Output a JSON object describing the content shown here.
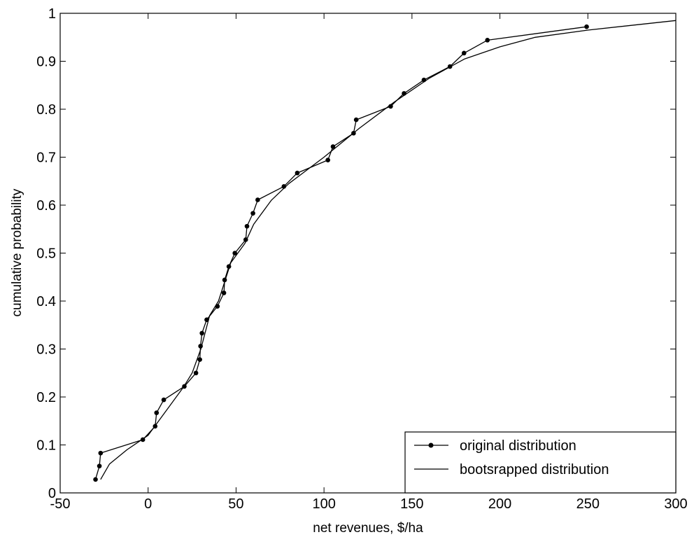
{
  "chart_data": {
    "type": "line",
    "title": "",
    "xlabel": "net revenues, $/ha",
    "ylabel": "cumulative probability",
    "xlim": [
      -50,
      300
    ],
    "ylim": [
      0,
      1
    ],
    "xticks": [
      -50,
      0,
      50,
      100,
      150,
      200,
      250,
      300
    ],
    "yticks": [
      0,
      0.1,
      0.2,
      0.3,
      0.4,
      0.5,
      0.6,
      0.7,
      0.8,
      0.9,
      1
    ],
    "grid": false,
    "legend_position": "bottom-right",
    "series": [
      {
        "name": "original distribution",
        "style": "line-with-dot-markers",
        "color": "#000000",
        "points": [
          [
            -29.9,
            0.028
          ],
          [
            -27.7,
            0.056
          ],
          [
            -27.0,
            0.083
          ],
          [
            -3.0,
            0.111
          ],
          [
            4.0,
            0.139
          ],
          [
            4.8,
            0.167
          ],
          [
            8.9,
            0.194
          ],
          [
            20.6,
            0.222
          ],
          [
            27.2,
            0.25
          ],
          [
            29.4,
            0.278
          ],
          [
            29.8,
            0.306
          ],
          [
            30.6,
            0.333
          ],
          [
            33.3,
            0.361
          ],
          [
            39.4,
            0.389
          ],
          [
            43.1,
            0.417
          ],
          [
            43.5,
            0.444
          ],
          [
            45.9,
            0.472
          ],
          [
            49.3,
            0.5
          ],
          [
            55.5,
            0.528
          ],
          [
            56.2,
            0.556
          ],
          [
            59.6,
            0.583
          ],
          [
            62.3,
            0.611
          ],
          [
            77.2,
            0.639
          ],
          [
            84.8,
            0.667
          ],
          [
            102.2,
            0.694
          ],
          [
            105.1,
            0.722
          ],
          [
            116.8,
            0.75
          ],
          [
            118.3,
            0.778
          ],
          [
            137.9,
            0.806
          ],
          [
            145.5,
            0.833
          ],
          [
            156.8,
            0.861
          ],
          [
            171.6,
            0.889
          ],
          [
            179.6,
            0.917
          ],
          [
            192.9,
            0.944
          ],
          [
            249.3,
            0.972
          ]
        ]
      },
      {
        "name": "bootsrapped distribution",
        "style": "line",
        "color": "#000000",
        "points": [
          [
            -27,
            0.028
          ],
          [
            -22,
            0.06
          ],
          [
            -12,
            0.09
          ],
          [
            0,
            0.12
          ],
          [
            10,
            0.17
          ],
          [
            20,
            0.22
          ],
          [
            25,
            0.25
          ],
          [
            30,
            0.3
          ],
          [
            35,
            0.37
          ],
          [
            40,
            0.4
          ],
          [
            47,
            0.48
          ],
          [
            55,
            0.52
          ],
          [
            60,
            0.56
          ],
          [
            70,
            0.61
          ],
          [
            80,
            0.645
          ],
          [
            100,
            0.7
          ],
          [
            120,
            0.76
          ],
          [
            140,
            0.815
          ],
          [
            160,
            0.865
          ],
          [
            180,
            0.905
          ],
          [
            200,
            0.93
          ],
          [
            220,
            0.95
          ],
          [
            250,
            0.965
          ],
          [
            300,
            0.985
          ]
        ]
      }
    ]
  }
}
